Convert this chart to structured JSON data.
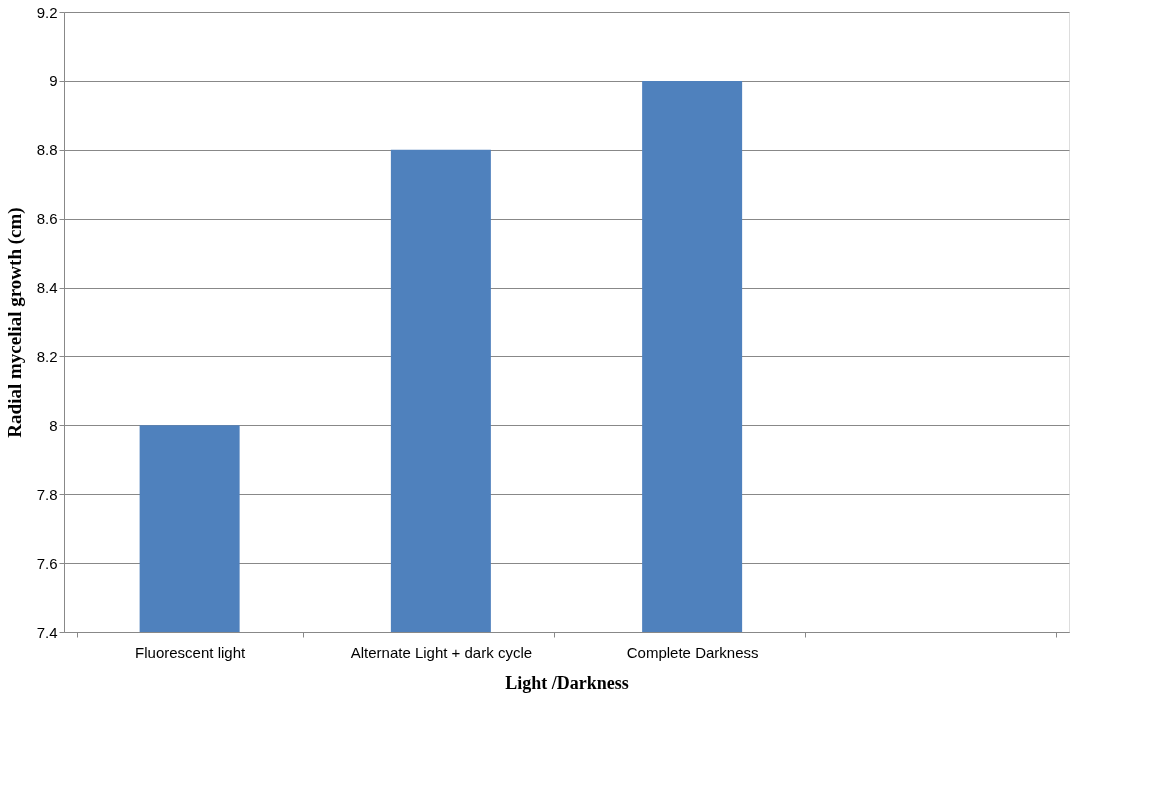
{
  "chart_data": {
    "type": "bar",
    "categories": [
      "Fluorescent light",
      "Alternate Light + dark cycle",
      "Complete Darkness",
      null
    ],
    "values": [
      8,
      8.8,
      9,
      null
    ],
    "color": "#4f81bd",
    "xlabel": "Light /Darkness",
    "ylabel": "Radial mycelial growth (cm)",
    "ylim": [
      7.4,
      9.2
    ],
    "yticks": [
      7.4,
      7.6,
      7.8,
      8,
      8.2,
      8.4,
      8.6,
      8.8,
      9,
      9.2
    ],
    "grid": "y"
  }
}
